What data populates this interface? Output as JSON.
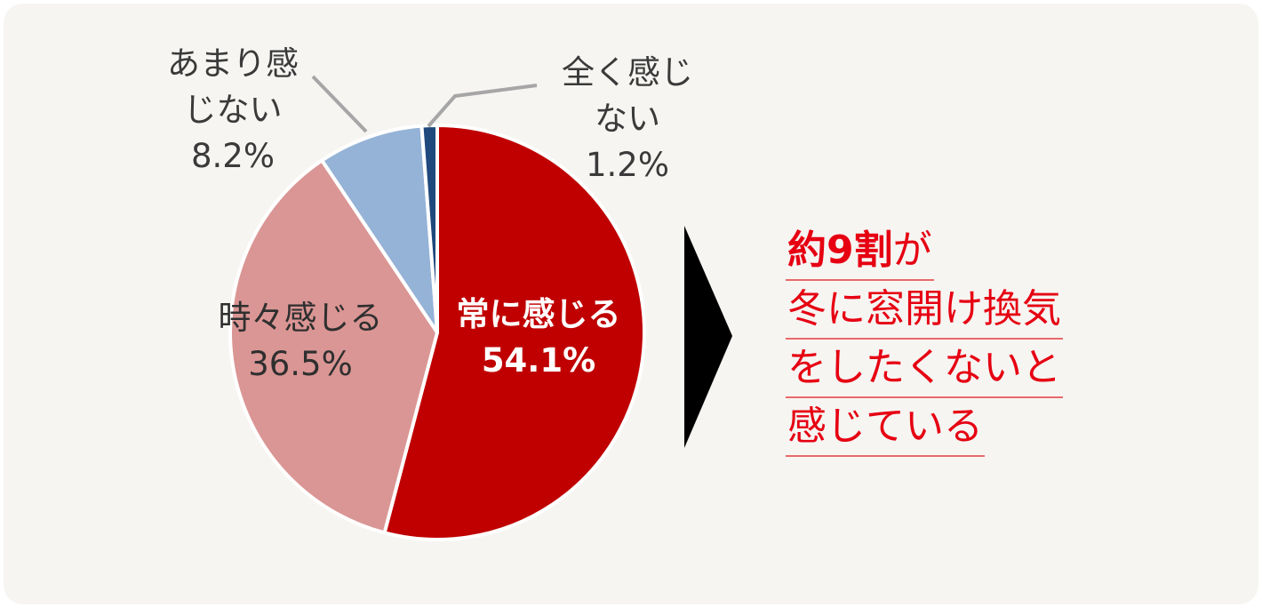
{
  "chart_data": {
    "type": "pie",
    "slices": [
      {
        "label_lines": [
          "常に感じる"
        ],
        "value": 54.1,
        "value_label": "54.1%",
        "color": "#c00000"
      },
      {
        "label_lines": [
          "時々感じる"
        ],
        "value": 36.5,
        "value_label": "36.5%",
        "color": "#da9694"
      },
      {
        "label_lines": [
          "あまり感",
          "じない"
        ],
        "value": 8.2,
        "value_label": "8.2%",
        "color": "#95b3d7"
      },
      {
        "label_lines": [
          "全く感じ",
          "ない"
        ],
        "value": 1.2,
        "value_label": "1.2%",
        "color": "#1f497d"
      }
    ]
  },
  "summary": {
    "highlight": "約9割",
    "line1_rest": "が",
    "line2": "冬に窓開け換気",
    "line3": "をしたくないと",
    "line4": "感じている",
    "color": "#e60012"
  },
  "arrow_color": "#000000"
}
